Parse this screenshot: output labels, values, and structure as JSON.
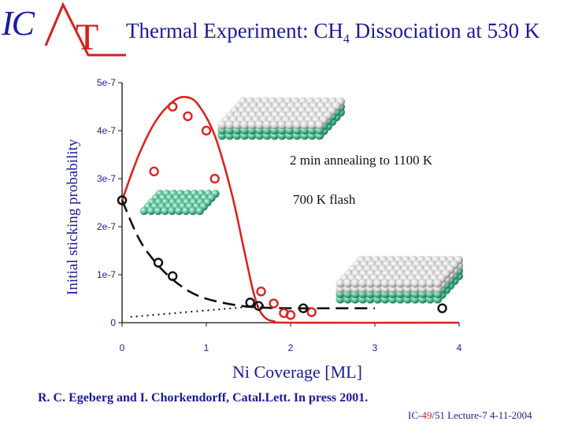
{
  "logo": {
    "letters": "IC",
    "accent": "T"
  },
  "title": {
    "main": "Thermal Experiment: CH",
    "sub": "4",
    "rest": " Dissociation at 530 K"
  },
  "chart_data": {
    "type": "scatter",
    "xlabel": "Ni Coverage [ML]",
    "ylabel": "Initial sticking probability",
    "xlim": [
      0,
      4
    ],
    "ylim": [
      0,
      5e-07
    ],
    "xticks": [
      0,
      1,
      2,
      3,
      4
    ],
    "xtick_labels": [
      "0",
      "1",
      "2",
      "3",
      "4"
    ],
    "yticks": [
      0,
      1e-07,
      2e-07,
      3e-07,
      4e-07,
      5e-07
    ],
    "ytick_labels": [
      "0",
      "1e-7",
      "2e-7",
      "3e-7",
      "4e-7",
      "5e-7"
    ],
    "series": [
      {
        "name": "2 min annealing to 1100 K",
        "color": "#dd2222",
        "points": [
          [
            0,
            2.55e-07
          ],
          [
            0.38,
            3.15e-07
          ],
          [
            0.6,
            4.5e-07
          ],
          [
            0.78,
            4.3e-07
          ],
          [
            1.0,
            4e-07
          ],
          [
            1.1,
            3e-07
          ],
          [
            1.65,
            6.5e-08
          ],
          [
            1.8,
            4e-08
          ],
          [
            1.92,
            2e-08
          ],
          [
            2.0,
            1.6e-08
          ],
          [
            2.25,
            2.2e-08
          ]
        ]
      },
      {
        "name": "700 K flash",
        "color": "#111111",
        "points": [
          [
            0,
            2.55e-07
          ],
          [
            0.43,
            1.25e-07
          ],
          [
            0.6,
            9.7e-08
          ],
          [
            1.52,
            4.2e-08
          ],
          [
            1.62,
            3.5e-08
          ],
          [
            2.15,
            3e-08
          ],
          [
            3.8,
            3e-08
          ]
        ]
      }
    ],
    "fits": [
      {
        "name": "annealed fit",
        "color": "#dd2222",
        "style": "solid",
        "points": [
          [
            0,
            2.55e-07
          ],
          [
            0.2,
            3.5e-07
          ],
          [
            0.4,
            4.2e-07
          ],
          [
            0.6,
            4.6e-07
          ],
          [
            0.75,
            4.7e-07
          ],
          [
            0.9,
            4.55e-07
          ],
          [
            1.1,
            3.9e-07
          ],
          [
            1.3,
            2.7e-07
          ],
          [
            1.45,
            1.5e-07
          ],
          [
            1.55,
            7e-08
          ],
          [
            1.62,
            3e-08
          ],
          [
            1.7,
            1e-08
          ],
          [
            1.8,
            3e-09
          ],
          [
            2.0,
            0.0
          ],
          [
            4.0,
            0.0
          ]
        ]
      },
      {
        "name": "flash fit",
        "color": "#111111",
        "style": "dashed",
        "points": [
          [
            0,
            2.55e-07
          ],
          [
            0.2,
            1.75e-07
          ],
          [
            0.4,
            1.25e-07
          ],
          [
            0.6,
            9e-08
          ],
          [
            0.8,
            6.5e-08
          ],
          [
            1.0,
            5e-08
          ],
          [
            1.3,
            3.8e-08
          ],
          [
            1.6,
            3.2e-08
          ],
          [
            2.0,
            3e-08
          ],
          [
            2.5,
            3e-08
          ],
          [
            3.0,
            3e-08
          ]
        ]
      },
      {
        "name": "baseline",
        "color": "#111111",
        "style": "dotted",
        "points": [
          [
            0.1,
            1.2e-08
          ],
          [
            1.7,
            3.6e-08
          ]
        ]
      }
    ],
    "annotations": [
      "2 min annealing to 1100 K",
      "700 K flash"
    ]
  },
  "citation": "R. C. Egeberg and I. Chorkendorff, Catal.Lett. In press 2001.",
  "footer": {
    "prefix": "IC-",
    "page": "49",
    "rest": "/51  Lecture-7 4-11-2004"
  }
}
